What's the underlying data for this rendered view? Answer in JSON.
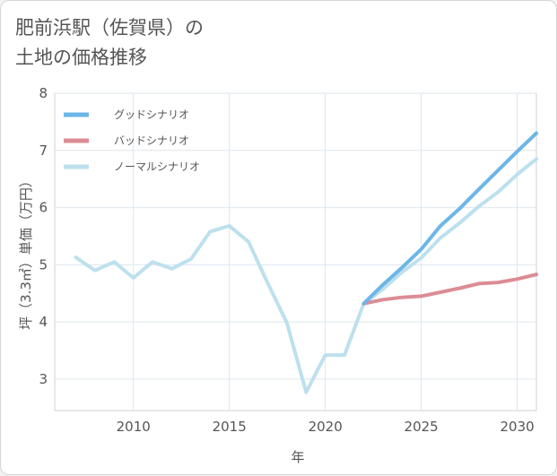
{
  "title": {
    "line1": "肥前浜駅（佐賀県）の",
    "line2": "土地の価格推移"
  },
  "chart_data": {
    "type": "line",
    "xlabel": "年",
    "ylabel": "坪（3.3㎡）単価（万円）",
    "xlim": [
      2005.9,
      2031.0
    ],
    "ylim": [
      2.45,
      8.0
    ],
    "xticks": [
      2010,
      2015,
      2020,
      2025,
      2030
    ],
    "yticks": [
      3,
      4,
      5,
      6,
      7,
      8
    ],
    "grid": true,
    "legend_position": "top-left",
    "series": [
      {
        "name": "グッドシナリオ",
        "color": "#6cb6e8",
        "x": [
          2022,
          2023,
          2024,
          2025,
          2026,
          2027,
          2028,
          2029,
          2030,
          2031
        ],
        "y": [
          4.32,
          4.65,
          4.95,
          5.27,
          5.68,
          5.98,
          6.32,
          6.65,
          6.98,
          7.3
        ]
      },
      {
        "name": "バッドシナリオ",
        "color": "#dc8c95",
        "x": [
          2022,
          2023,
          2024,
          2025,
          2026,
          2027,
          2028,
          2029,
          2030,
          2031
        ],
        "y": [
          4.32,
          4.39,
          4.43,
          4.45,
          4.52,
          4.59,
          4.67,
          4.69,
          4.75,
          4.83
        ]
      },
      {
        "name": "ノーマルシナリオ",
        "color": "#bde0ee",
        "x": [
          2007,
          2008,
          2009,
          2010,
          2011,
          2012,
          2013,
          2014,
          2015,
          2016,
          2017,
          2018,
          2019,
          2020,
          2021,
          2022,
          2023,
          2024,
          2025,
          2026,
          2027,
          2028,
          2029,
          2030,
          2031
        ],
        "y": [
          5.13,
          4.9,
          5.05,
          4.77,
          5.05,
          4.93,
          5.1,
          5.58,
          5.68,
          5.4,
          4.68,
          3.98,
          2.77,
          3.42,
          3.42,
          4.32,
          4.57,
          4.87,
          5.12,
          5.47,
          5.73,
          6.02,
          6.27,
          6.58,
          6.85
        ]
      }
    ]
  }
}
